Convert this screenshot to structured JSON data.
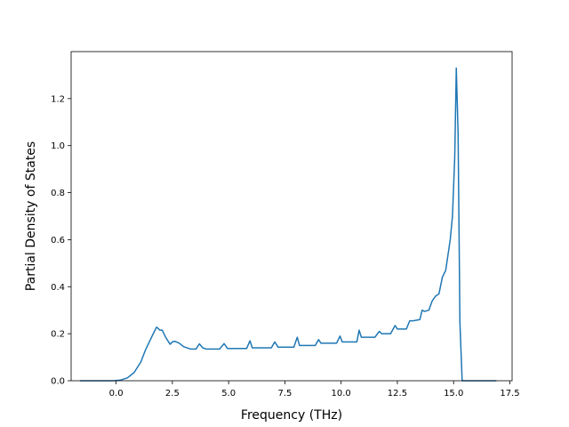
{
  "chart_data": {
    "type": "line",
    "title": "",
    "xlabel": "Frequency (THz)",
    "ylabel": "Partial Density of States",
    "xlim": [
      -2.0,
      17.6
    ],
    "ylim": [
      0.0,
      1.4
    ],
    "x_ticks": [
      0.0,
      2.5,
      5.0,
      7.5,
      10.0,
      12.5,
      15.0,
      17.5
    ],
    "x_tick_labels": [
      "0.0",
      "2.5",
      "5.0",
      "7.5",
      "10.0",
      "12.5",
      "15.0",
      "17.5"
    ],
    "y_ticks": [
      0.0,
      0.2,
      0.4,
      0.6,
      0.8,
      1.0,
      1.2
    ],
    "y_tick_labels": [
      "0.0",
      "0.2",
      "0.4",
      "0.6",
      "0.8",
      "1.0",
      "1.2"
    ],
    "grid": false,
    "legend": "none",
    "series": [
      {
        "color": "#1f77b4",
        "points": [
          [
            -1.6,
            0.0
          ],
          [
            -0.1,
            0.0
          ],
          [
            0.2,
            0.003
          ],
          [
            0.5,
            0.012
          ],
          [
            0.8,
            0.035
          ],
          [
            1.1,
            0.08
          ],
          [
            1.3,
            0.13
          ],
          [
            1.5,
            0.17
          ],
          [
            1.7,
            0.21
          ],
          [
            1.8,
            0.228
          ],
          [
            1.95,
            0.215
          ],
          [
            2.05,
            0.215
          ],
          [
            2.2,
            0.185
          ],
          [
            2.4,
            0.155
          ],
          [
            2.5,
            0.165
          ],
          [
            2.6,
            0.168
          ],
          [
            2.8,
            0.16
          ],
          [
            3.0,
            0.145
          ],
          [
            3.3,
            0.135
          ],
          [
            3.55,
            0.135
          ],
          [
            3.7,
            0.157
          ],
          [
            3.85,
            0.14
          ],
          [
            4.0,
            0.135
          ],
          [
            4.6,
            0.135
          ],
          [
            4.8,
            0.158
          ],
          [
            4.95,
            0.137
          ],
          [
            5.8,
            0.137
          ],
          [
            5.95,
            0.17
          ],
          [
            6.05,
            0.14
          ],
          [
            6.9,
            0.14
          ],
          [
            7.05,
            0.165
          ],
          [
            7.2,
            0.143
          ],
          [
            7.9,
            0.143
          ],
          [
            8.05,
            0.185
          ],
          [
            8.15,
            0.15
          ],
          [
            8.85,
            0.15
          ],
          [
            9.0,
            0.175
          ],
          [
            9.1,
            0.16
          ],
          [
            9.8,
            0.16
          ],
          [
            9.95,
            0.19
          ],
          [
            10.05,
            0.165
          ],
          [
            10.7,
            0.165
          ],
          [
            10.8,
            0.215
          ],
          [
            10.9,
            0.185
          ],
          [
            11.5,
            0.185
          ],
          [
            11.7,
            0.21
          ],
          [
            11.8,
            0.2
          ],
          [
            12.2,
            0.2
          ],
          [
            12.4,
            0.235
          ],
          [
            12.5,
            0.22
          ],
          [
            12.9,
            0.22
          ],
          [
            13.05,
            0.255
          ],
          [
            13.2,
            0.255
          ],
          [
            13.5,
            0.26
          ],
          [
            13.6,
            0.3
          ],
          [
            13.7,
            0.295
          ],
          [
            13.9,
            0.3
          ],
          [
            14.05,
            0.34
          ],
          [
            14.2,
            0.36
          ],
          [
            14.35,
            0.37
          ],
          [
            14.5,
            0.44
          ],
          [
            14.65,
            0.47
          ],
          [
            14.85,
            0.6
          ],
          [
            14.95,
            0.7
          ],
          [
            15.05,
            0.95
          ],
          [
            15.12,
            1.33
          ],
          [
            15.2,
            1.05
          ],
          [
            15.28,
            0.25
          ],
          [
            15.38,
            0.0
          ],
          [
            16.9,
            0.0
          ]
        ]
      }
    ]
  }
}
